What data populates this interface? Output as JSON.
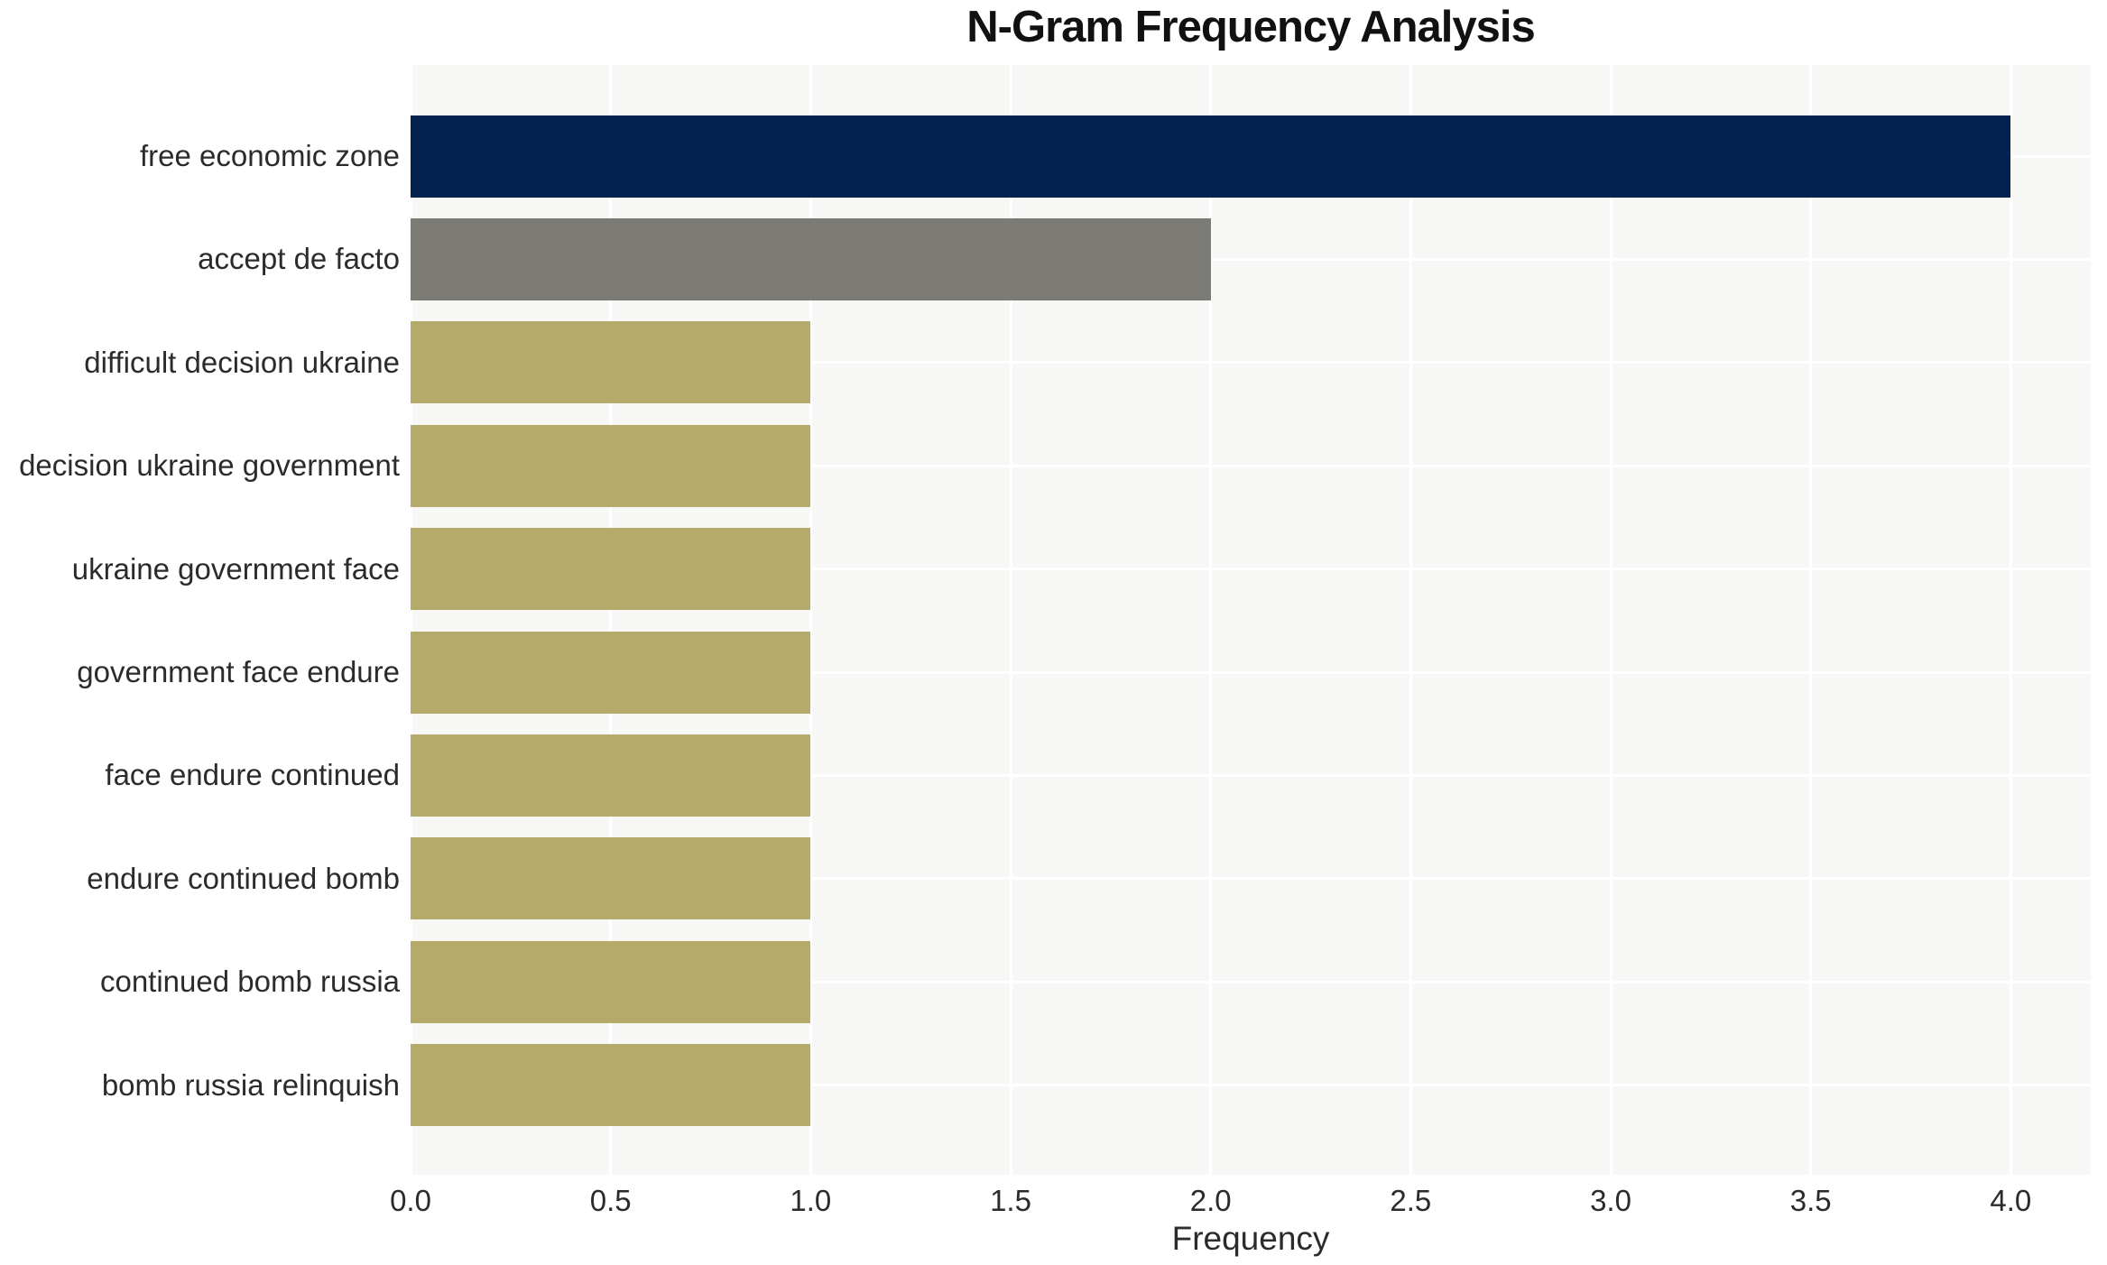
{
  "chart_data": {
    "type": "bar",
    "orientation": "horizontal",
    "title": "N-Gram Frequency Analysis",
    "xlabel": "Frequency",
    "categories": [
      "free economic zone",
      "accept de facto",
      "difficult decision ukraine",
      "decision ukraine government",
      "ukraine government face",
      "government face endure",
      "face endure continued",
      "endure continued bomb",
      "continued bomb russia",
      "bomb russia relinquish"
    ],
    "values": [
      4,
      2,
      1,
      1,
      1,
      1,
      1,
      1,
      1,
      1
    ],
    "bar_colors": [
      "#03224f",
      "#7b7a75",
      "#b6aa6a",
      "#b6aa6a",
      "#b6aa6a",
      "#b6aa6a",
      "#b6aa6a",
      "#b6aa6a",
      "#b6aa6a",
      "#b6aa6a"
    ],
    "xlim": [
      0,
      4.2
    ],
    "xticks": [
      0,
      0.5,
      1,
      1.5,
      2,
      2.5,
      3,
      3.5,
      4
    ],
    "xtick_labels": [
      "0.0",
      "0.5",
      "1.0",
      "1.5",
      "2.0",
      "2.5",
      "3.0",
      "3.5",
      "4.0"
    ],
    "grid": true,
    "legend_visible": false,
    "plot_bg_color": "#f7f7f6",
    "grid_color": "#ffffff",
    "text_color": "#2b2b2b"
  }
}
